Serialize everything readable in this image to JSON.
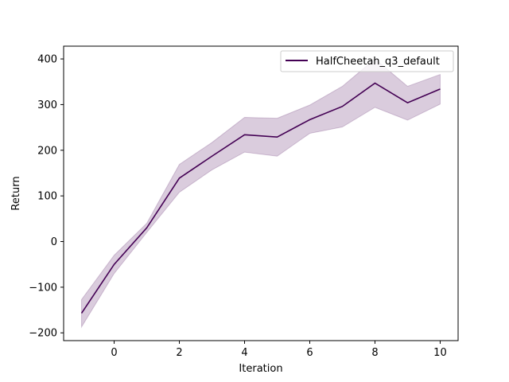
{
  "chart_data": {
    "type": "line",
    "xlabel": "Iteration",
    "ylabel": "Return",
    "xlim": [
      -1.55,
      10.55
    ],
    "ylim": [
      -217,
      428
    ],
    "xticks": [
      0,
      2,
      4,
      6,
      8,
      10
    ],
    "yticks": [
      -200,
      -100,
      0,
      100,
      200,
      300,
      400
    ],
    "grid": false,
    "legend": "top-right",
    "series": [
      {
        "name": "HalfCheetah_q3_default",
        "color": "#440154",
        "band_color": "#440154",
        "x": [
          -1,
          0,
          1,
          2,
          3,
          4,
          5,
          6,
          7,
          8,
          9,
          10
        ],
        "y": [
          -157,
          -50,
          30,
          139,
          187,
          234,
          229,
          267,
          296,
          347,
          304,
          334
        ],
        "lower": [
          -187,
          -70,
          20,
          108,
          157,
          196,
          187,
          237,
          251,
          294,
          266,
          301
        ],
        "upper": [
          -127,
          -30,
          40,
          169,
          217,
          272,
          270,
          299,
          340,
          400,
          340,
          366
        ]
      }
    ]
  }
}
